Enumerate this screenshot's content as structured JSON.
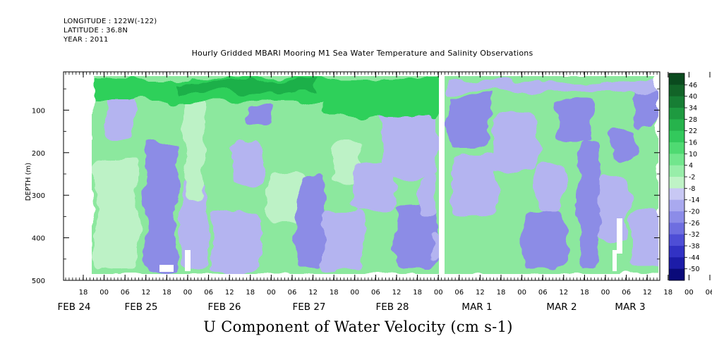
{
  "header": {
    "longitude": "LONGITUDE : 122W(-122)",
    "latitude": "LATITUDE : 36.8N",
    "year": "YEAR : 2011"
  },
  "chart_data": {
    "type": "heatmap",
    "title": "Hourly Gridded MBARI Mooring M1 Sea Water Temperature and Salinity Observations",
    "variable_title": "U Component of Water Velocity (cm s-1)",
    "ylabel": "DEPTH (m)",
    "ylim": [
      500,
      10
    ],
    "y_ticks": [
      100,
      200,
      300,
      400,
      500
    ],
    "x_hour_ticks": [
      "18",
      "00",
      "06",
      "12",
      "18",
      "00",
      "06",
      "12",
      "18",
      "00",
      "06",
      "12",
      "18",
      "00",
      "06",
      "12",
      "18",
      "00",
      "06",
      "12",
      "18",
      "00",
      "06",
      "12",
      "18",
      "00",
      "06",
      "12",
      "18",
      "00",
      "06",
      "12",
      "18",
      "00",
      "06",
      "12"
    ],
    "x_date_labels": [
      {
        "label": "FEB 24",
        "at": "2011-02-24"
      },
      {
        "label": "FEB 25",
        "at": "2011-02-25"
      },
      {
        "label": "FEB 26",
        "at": "2011-02-26"
      },
      {
        "label": "FEB 27",
        "at": "2011-02-27"
      },
      {
        "label": "FEB 28",
        "at": "2011-02-28"
      },
      {
        "label": "MAR  1",
        "at": "2011-03-01"
      },
      {
        "label": "MAR  2",
        "at": "2011-03-02"
      },
      {
        "label": "MAR  3",
        "at": "2011-03-03"
      }
    ],
    "data_gap": {
      "at": "2011-03-01T00:00"
    },
    "colorbar": {
      "levels": [
        "46",
        "40",
        "34",
        "28",
        "22",
        "16",
        "10",
        "4",
        "-2",
        "-8",
        "-14",
        "-20",
        "-26",
        "-32",
        "-38",
        "-44",
        "-50"
      ],
      "colors": [
        "#0a4a1e",
        "#126428",
        "#177e34",
        "#1e9a40",
        "#26b34c",
        "#33c95c",
        "#4fda72",
        "#72e68d",
        "#98eea9",
        "#bff3c6",
        "#c8c8f4",
        "#a9a9ef",
        "#8c8ce8",
        "#6e6ee0",
        "#4e4ed6",
        "#3232c4",
        "#1c1ca8",
        "#0a0a7a"
      ]
    },
    "colors": {
      "surface_green": "#2fd05a",
      "mid_green": "#8ce89e",
      "light_green": "#bdf2c6",
      "light_blue": "#b4b4f0",
      "mid_blue": "#8c8ce6",
      "deep_blue": "#5a5ad8"
    }
  }
}
